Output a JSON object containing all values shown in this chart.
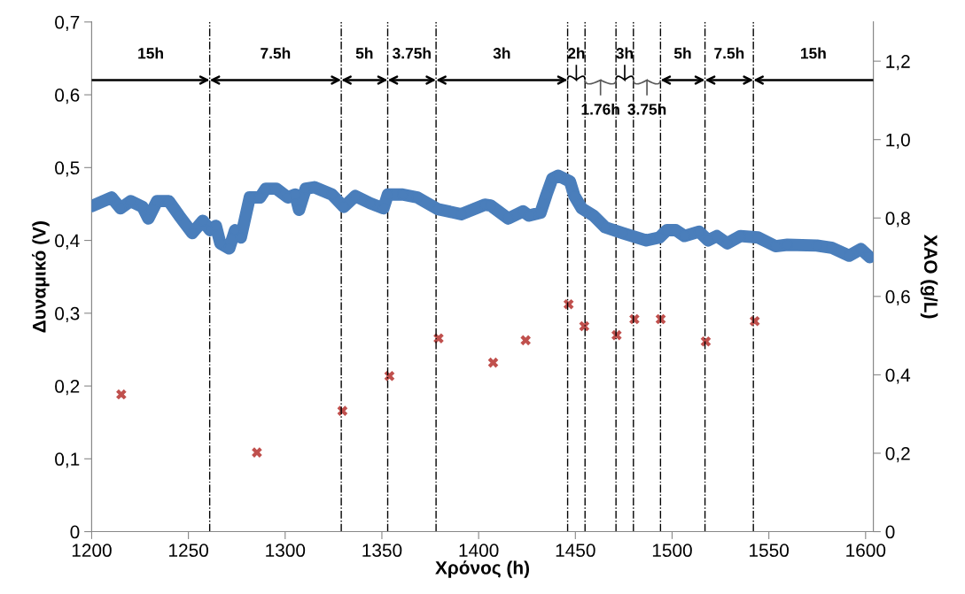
{
  "chart_data": {
    "type": "line",
    "xlabel": "Χρόνος (h)",
    "ylabel": "Δυναμικό (V)",
    "y2label": "ΧΑΟ (g/L)",
    "xlim": [
      1200,
      1604
    ],
    "xticks": [
      1200,
      1250,
      1300,
      1350,
      1400,
      1450,
      1500,
      1550,
      1600
    ],
    "ylim": [
      0,
      0.7
    ],
    "yticks": [
      0,
      {
        "value": 0.1,
        "label": "0,1"
      },
      {
        "value": 0.2,
        "label": "0,2"
      },
      {
        "value": 0.3,
        "label": "0,3"
      },
      {
        "value": 0.4,
        "label": "0,4"
      },
      {
        "value": 0.5,
        "label": "0,5"
      },
      {
        "value": 0.6,
        "label": "0,6"
      },
      {
        "value": 0.7,
        "label": "0,7"
      }
    ],
    "y2lim": [
      0,
      1.3
    ],
    "y2ticks": [
      0,
      {
        "value": 0.2,
        "label": "0,2"
      },
      {
        "value": 0.4,
        "label": "0,4"
      },
      {
        "value": 0.6,
        "label": "0,6"
      },
      {
        "value": 0.8,
        "label": "0,8"
      },
      {
        "value": 1.0,
        "label": "1,0"
      },
      {
        "value": 1.2,
        "label": "1,2"
      }
    ],
    "grid": false,
    "legend": false,
    "series": [
      {
        "color": "#4a7ebb",
        "marker": "circle",
        "x": [
          1200,
          1210.3,
          1214.9,
          1220.2,
          1226.3,
          1229.3,
          1233.8,
          1239.9,
          1245.2,
          1252,
          1257.4,
          1261.2,
          1264.2,
          1266.5,
          1271.1,
          1274.1,
          1277.1,
          1281.7,
          1287,
          1290,
          1295.4,
          1301.4,
          1305.2,
          1307.2,
          1310.6,
          1315.1,
          1324.2,
          1330.3,
          1336.3,
          1344,
          1350.8,
          1353.1,
          1360.7,
          1368.3,
          1378.9,
          1391,
          1403.2,
          1406.2,
          1415.3,
          1422.9,
          1426,
          1432,
          1435.1,
          1438.1,
          1441.1,
          1447.2,
          1449.5,
          1453.3,
          1459.4,
          1465.4,
          1474.5,
          1486.7,
          1493.5,
          1497.3,
          1501.9,
          1506.4,
          1514,
          1518.6,
          1523.1,
          1528.5,
          1535.3,
          1544.4,
          1553.5,
          1559.6,
          1574.8,
          1582.4,
          1591.5,
          1597.6,
          1602.1
        ],
        "values": [
          0.447,
          0.459,
          0.444,
          0.454,
          0.446,
          0.43,
          0.454,
          0.454,
          0.434,
          0.41,
          0.427,
          0.414,
          0.42,
          0.396,
          0.389,
          0.414,
          0.404,
          0.459,
          0.459,
          0.471,
          0.471,
          0.459,
          0.463,
          0.442,
          0.471,
          0.473,
          0.463,
          0.446,
          0.461,
          0.451,
          0.444,
          0.463,
          0.463,
          0.459,
          0.443,
          0.436,
          0.449,
          0.448,
          0.43,
          0.44,
          0.434,
          0.438,
          0.463,
          0.485,
          0.489,
          0.481,
          0.461,
          0.444,
          0.434,
          0.418,
          0.41,
          0.4,
          0.404,
          0.414,
          0.414,
          0.406,
          0.412,
          0.4,
          0.406,
          0.396,
          0.406,
          0.404,
          0.392,
          0.394,
          0.393,
          0.39,
          0.379,
          0.388,
          0.377
        ]
      },
      {
        "type": "scatter",
        "axis": "y2",
        "color": "#c0504d",
        "marker": "cross",
        "x": [
          1215.3,
          1285.4,
          1329.6,
          1353.9,
          1379.3,
          1407.5,
          1424.3,
          1446.5,
          1454.6,
          1471.3,
          1480.5,
          1494.1,
          1517.4,
          1542.7
        ],
        "values": [
          0.35,
          0.202,
          0.308,
          0.397,
          0.493,
          0.431,
          0.488,
          0.58,
          0.524,
          0.501,
          0.542,
          0.542,
          0.485,
          0.537
        ]
      }
    ],
    "ref_lines": [
      {
        "axis": "x",
        "value": 1261,
        "color": "#000000",
        "line_style": "dashdot"
      },
      {
        "axis": "x",
        "value": 1329,
        "color": "#000000",
        "line_style": "dashdot"
      },
      {
        "axis": "x",
        "value": 1353,
        "color": "#000000",
        "line_style": "dashdot"
      },
      {
        "axis": "x",
        "value": 1378,
        "color": "#000000",
        "line_style": "dashdot"
      },
      {
        "axis": "x",
        "value": 1446,
        "color": "#000000",
        "line_style": "dashdot"
      },
      {
        "axis": "x",
        "value": 1455,
        "color": "#000000",
        "line_style": "dashdot"
      },
      {
        "axis": "x",
        "value": 1471,
        "color": "#000000",
        "line_style": "dashdot"
      },
      {
        "axis": "x",
        "value": 1480,
        "color": "#000000",
        "line_style": "dashdot"
      },
      {
        "axis": "x",
        "value": 1494,
        "color": "#000000",
        "line_style": "dashdot"
      },
      {
        "axis": "x",
        "value": 1517,
        "color": "#000000",
        "line_style": "dashdot"
      },
      {
        "axis": "x",
        "value": 1542,
        "color": "#000000",
        "line_style": "dashdot"
      }
    ],
    "annotations": [
      "15h",
      "7.5h",
      "5h",
      "3.75h",
      "3h",
      "2h",
      "1.76h",
      "3h",
      "3.75h",
      "5h",
      "7.5h",
      "15h"
    ]
  }
}
